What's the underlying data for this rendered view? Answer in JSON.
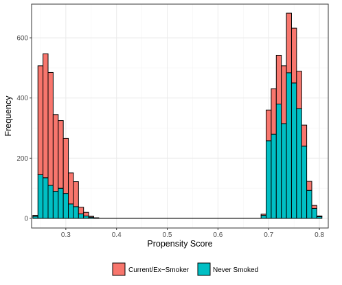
{
  "chart_data": {
    "type": "bar",
    "xlabel": "Propensity Score",
    "ylabel": "Frequency",
    "x_ticks": [
      "0.3",
      "0.4",
      "0.5",
      "0.6",
      "0.7",
      "0.8"
    ],
    "y_ticks": [
      "0",
      "200",
      "400",
      "600"
    ],
    "xlim": [
      0.2325,
      0.8175
    ],
    "ylim": [
      -32,
      712
    ],
    "grid": true,
    "stacked": true,
    "legend_position": "bottom",
    "bin_start": 0.235,
    "bin_width": 0.01,
    "bins": [
      {
        "x0": 0.235,
        "x1": 0.245,
        "smoker": 3,
        "never": 7
      },
      {
        "x0": 0.245,
        "x1": 0.255,
        "smoker": 362,
        "never": 145
      },
      {
        "x0": 0.255,
        "x1": 0.265,
        "smoker": 412,
        "never": 135
      },
      {
        "x0": 0.265,
        "x1": 0.275,
        "smoker": 375,
        "never": 110
      },
      {
        "x0": 0.275,
        "x1": 0.285,
        "smoker": 255,
        "never": 90
      },
      {
        "x0": 0.285,
        "x1": 0.295,
        "smoker": 225,
        "never": 100
      },
      {
        "x0": 0.295,
        "x1": 0.305,
        "smoker": 183,
        "never": 83
      },
      {
        "x0": 0.305,
        "x1": 0.315,
        "smoker": 103,
        "never": 48
      },
      {
        "x0": 0.315,
        "x1": 0.325,
        "smoker": 83,
        "never": 39
      },
      {
        "x0": 0.325,
        "x1": 0.335,
        "smoker": 22,
        "never": 15
      },
      {
        "x0": 0.335,
        "x1": 0.345,
        "smoker": 12,
        "never": 8
      },
      {
        "x0": 0.345,
        "x1": 0.355,
        "smoker": 3,
        "never": 4
      },
      {
        "x0": 0.355,
        "x1": 0.365,
        "smoker": 1,
        "never": 1
      },
      {
        "x0": 0.685,
        "x1": 0.695,
        "smoker": 4,
        "never": 10
      },
      {
        "x0": 0.695,
        "x1": 0.705,
        "smoker": 102,
        "never": 258
      },
      {
        "x0": 0.705,
        "x1": 0.715,
        "smoker": 151,
        "never": 280
      },
      {
        "x0": 0.715,
        "x1": 0.725,
        "smoker": 162,
        "never": 380
      },
      {
        "x0": 0.725,
        "x1": 0.735,
        "smoker": 192,
        "never": 315
      },
      {
        "x0": 0.735,
        "x1": 0.745,
        "smoker": 198,
        "never": 484
      },
      {
        "x0": 0.745,
        "x1": 0.755,
        "smoker": 182,
        "never": 450
      },
      {
        "x0": 0.755,
        "x1": 0.765,
        "smoker": 124,
        "never": 365
      },
      {
        "x0": 0.765,
        "x1": 0.775,
        "smoker": 70,
        "never": 240
      },
      {
        "x0": 0.775,
        "x1": 0.785,
        "smoker": 30,
        "never": 93
      },
      {
        "x0": 0.785,
        "x1": 0.795,
        "smoker": 10,
        "never": 33
      },
      {
        "x0": 0.795,
        "x1": 0.805,
        "smoker": 2,
        "never": 6
      }
    ],
    "series": [
      {
        "name": "Current/Ex−Smoker",
        "key": "smoker",
        "color": "#F8766D"
      },
      {
        "name": "Never Smoked",
        "key": "never",
        "color": "#00BFC4"
      }
    ]
  },
  "legend": {
    "items": [
      {
        "label": "Current/Ex−Smoker",
        "color": "#F8766D"
      },
      {
        "label": "Never Smoked",
        "color": "#00BFC4"
      }
    ]
  },
  "colors": {
    "panel_border": "#333333",
    "grid_major": "#ebebeb",
    "grid_minor": "#f5f5f5",
    "bar_outline": "#000000"
  }
}
